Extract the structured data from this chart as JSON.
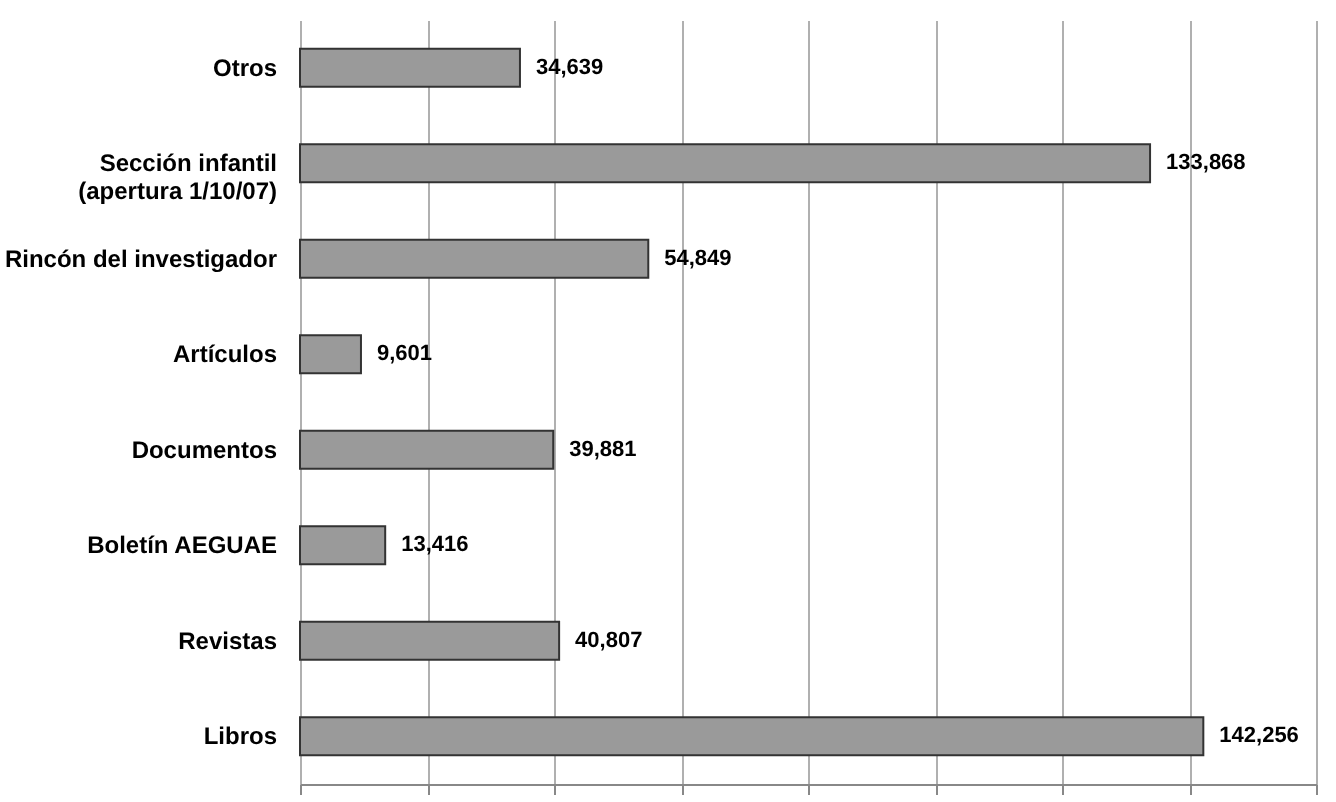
{
  "chart_data": {
    "type": "bar",
    "orientation": "horizontal",
    "categories": [
      "Otros",
      "Sección infantil\n(apertura 1/10/07)",
      "Rincón del investigador",
      "Artículos",
      "Documentos",
      "Boletín AEGUAE",
      "Revistas",
      "Libros"
    ],
    "values": [
      34639,
      133868,
      54849,
      9601,
      39881,
      13416,
      40807,
      142256
    ],
    "value_labels": [
      "34,639",
      "133,868",
      "54,849",
      "9,601",
      "39,881",
      "13,416",
      "40,807",
      "142,256"
    ],
    "color": "#9a9a9a",
    "xlim": [
      0,
      160000
    ],
    "xticks": [
      {
        "value": 0,
        "label": null
      },
      {
        "value": 20000,
        "label": null
      },
      {
        "value": 40000,
        "label": null
      },
      {
        "value": 60000,
        "label": null
      },
      {
        "value": 80000,
        "label": null
      },
      {
        "value": 100000,
        "label": null
      },
      {
        "value": 120000,
        "label": null
      },
      {
        "value": 140000,
        "label": null
      },
      {
        "value": 160000,
        "label": null
      }
    ],
    "grid": "x",
    "tick_labels": "y"
  }
}
